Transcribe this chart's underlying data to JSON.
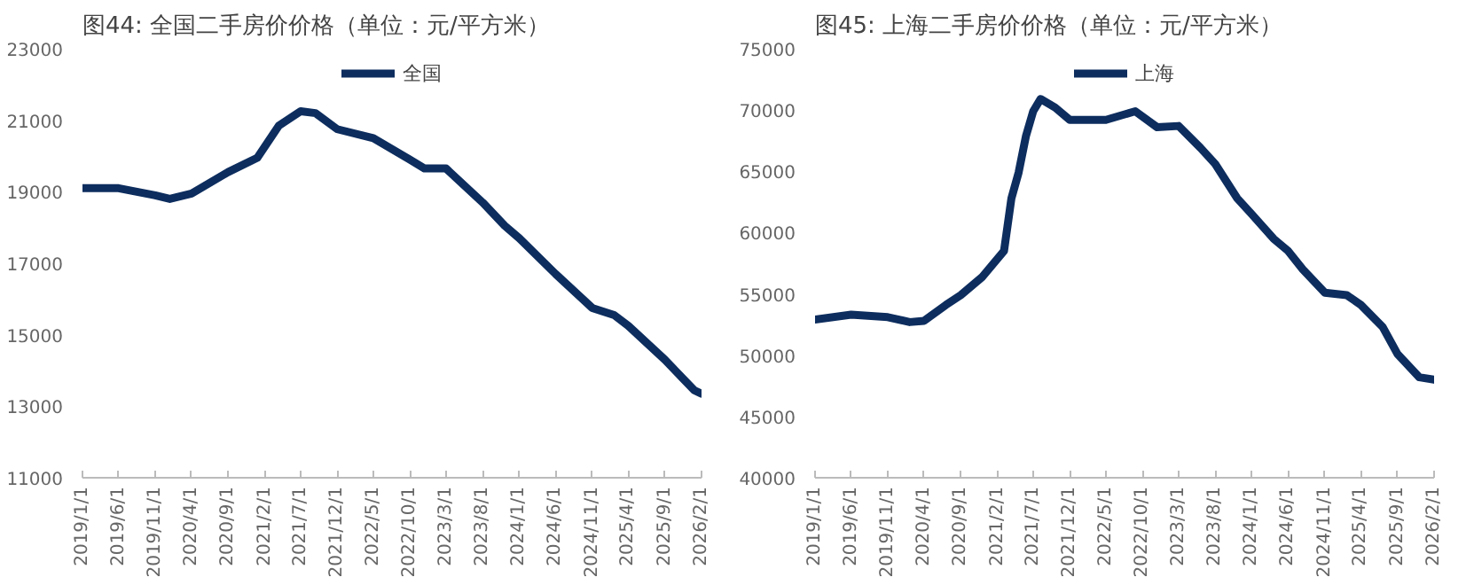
{
  "chart_data": [
    {
      "type": "line",
      "title": "图44: 全国二手房价价格（单位：元/平方米）",
      "legend": "top",
      "grid": false,
      "marker": "none",
      "line_style": "solid",
      "x": [
        "2019-01",
        "2019-06",
        "2019-11",
        "2020-01",
        "2020-04",
        "2020-09",
        "2021-01",
        "2021-04",
        "2021-07",
        "2021-09",
        "2021-12",
        "2022-05",
        "2022-10",
        "2022-12",
        "2023-03",
        "2023-08",
        "2023-11",
        "2024-01",
        "2024-06",
        "2024-11",
        "2025-02",
        "2025-04",
        "2025-09",
        "2026-01",
        "2026-02"
      ],
      "series": [
        {
          "name": "全国",
          "color": "#0d2d5e",
          "values": [
            19100,
            19100,
            18900,
            18800,
            18950,
            19550,
            19950,
            20850,
            21250,
            21200,
            20750,
            20500,
            19900,
            19650,
            19650,
            18700,
            18050,
            17700,
            16700,
            15750,
            15550,
            15250,
            14300,
            13450,
            13350
          ]
        }
      ],
      "xlim": [
        "2019-01",
        "2026-02"
      ],
      "xticks": [
        {
          "value": "2019-01",
          "label": "2019/1/1"
        },
        {
          "value": "2019-06",
          "label": "2019/6/1"
        },
        {
          "value": "2019-11",
          "label": "2019/11/1"
        },
        {
          "value": "2020-04",
          "label": "2020/4/1"
        },
        {
          "value": "2020-09",
          "label": "2020/9/1"
        },
        {
          "value": "2021-02",
          "label": "2021/2/1"
        },
        {
          "value": "2021-07",
          "label": "2021/7/1"
        },
        {
          "value": "2021-12",
          "label": "2021/12/1"
        },
        {
          "value": "2022-05",
          "label": "2022/5/1"
        },
        {
          "value": "2022-10",
          "label": "2022/10/1"
        },
        {
          "value": "2023-03",
          "label": "2023/3/1"
        },
        {
          "value": "2023-08",
          "label": "2023/8/1"
        },
        {
          "value": "2024-01",
          "label": "2024/1/1"
        },
        {
          "value": "2024-06",
          "label": "2024/6/1"
        },
        {
          "value": "2024-11",
          "label": "2024/11/1"
        },
        {
          "value": "2025-04",
          "label": "2025/4/1"
        },
        {
          "value": "2025-09",
          "label": "2025/9/1"
        },
        {
          "value": "2026-02",
          "label": "2026/2/1"
        }
      ],
      "ylim": [
        11000,
        23000
      ],
      "yticks": [
        11000,
        13000,
        15000,
        17000,
        19000,
        21000,
        23000
      ]
    },
    {
      "type": "line",
      "title": "图45: 上海二手房价价格（单位：元/平方米）",
      "legend": "top",
      "grid": false,
      "marker": "none",
      "line_style": "solid",
      "x": [
        "2019-01",
        "2019-06",
        "2019-11",
        "2020-02",
        "2020-04",
        "2020-07",
        "2020-09",
        "2020-12",
        "2021-03",
        "2021-04",
        "2021-05",
        "2021-06",
        "2021-07",
        "2021-08",
        "2021-10",
        "2021-12",
        "2022-05",
        "2022-09",
        "2022-12",
        "2023-03",
        "2023-06",
        "2023-08",
        "2023-11",
        "2024-01",
        "2024-04",
        "2024-06",
        "2024-08",
        "2024-11",
        "2025-02",
        "2025-04",
        "2025-07",
        "2025-09",
        "2025-12",
        "2026-02"
      ],
      "series": [
        {
          "name": "上海",
          "color": "#0d2d5e",
          "values": [
            52900,
            53300,
            53100,
            52700,
            52800,
            54100,
            54900,
            56400,
            58500,
            62800,
            64900,
            67900,
            69900,
            70900,
            70200,
            69200,
            69200,
            69900,
            68600,
            68700,
            66900,
            65600,
            62800,
            61500,
            59500,
            58500,
            57000,
            55100,
            54900,
            54100,
            52300,
            50100,
            48200,
            48000
          ]
        }
      ],
      "xlim": [
        "2019-01",
        "2026-02"
      ],
      "xticks": [
        {
          "value": "2019-01",
          "label": "2019/1/1"
        },
        {
          "value": "2019-06",
          "label": "2019/6/1"
        },
        {
          "value": "2019-11",
          "label": "2019/11/1"
        },
        {
          "value": "2020-04",
          "label": "2020/4/1"
        },
        {
          "value": "2020-09",
          "label": "2020/9/1"
        },
        {
          "value": "2021-02",
          "label": "2021/2/1"
        },
        {
          "value": "2021-07",
          "label": "2021/7/1"
        },
        {
          "value": "2021-12",
          "label": "2021/12/1"
        },
        {
          "value": "2022-05",
          "label": "2022/5/1"
        },
        {
          "value": "2022-10",
          "label": "2022/10/1"
        },
        {
          "value": "2023-03",
          "label": "2023/3/1"
        },
        {
          "value": "2023-08",
          "label": "2023/8/1"
        },
        {
          "value": "2024-01",
          "label": "2024/1/1"
        },
        {
          "value": "2024-06",
          "label": "2024/6/1"
        },
        {
          "value": "2024-11",
          "label": "2024/11/1"
        },
        {
          "value": "2025-04",
          "label": "2025/4/1"
        },
        {
          "value": "2025-09",
          "label": "2025/9/1"
        },
        {
          "value": "2026-02",
          "label": "2026/2/1"
        }
      ],
      "ylim": [
        40000,
        75000
      ],
      "yticks": [
        40000,
        45000,
        50000,
        55000,
        60000,
        65000,
        70000,
        75000
      ]
    }
  ]
}
